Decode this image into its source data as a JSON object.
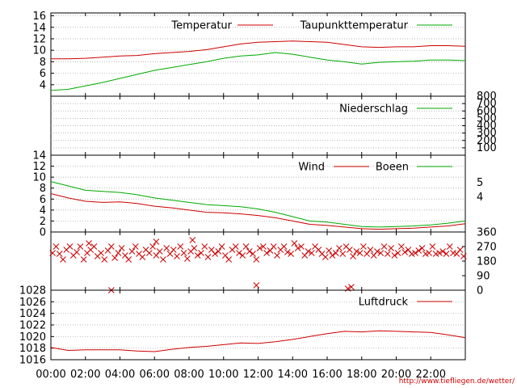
{
  "chart_data": [
    {
      "type": "line",
      "panel": "temperature",
      "x_unit": "hours",
      "ylim": [
        2,
        16.5
      ],
      "y_ticks": [
        "4",
        "6",
        "8",
        "10",
        "12",
        "14",
        "16"
      ],
      "y_tick_values": [
        4,
        6,
        8,
        10,
        12,
        14,
        16
      ],
      "series": [
        {
          "name": "Temperatur",
          "color": "#cc0000",
          "x": [
            0,
            1,
            2,
            3,
            4,
            5,
            6,
            7,
            8,
            9,
            10,
            11,
            12,
            13,
            14,
            15,
            16,
            17,
            18,
            19,
            20,
            21,
            22,
            23,
            24
          ],
          "y": [
            8.5,
            8.5,
            8.6,
            8.8,
            9.0,
            9.1,
            9.4,
            9.6,
            9.8,
            10.1,
            10.6,
            11.1,
            11.4,
            11.5,
            11.6,
            11.5,
            11.4,
            11.0,
            10.6,
            10.5,
            10.6,
            10.6,
            10.8,
            10.8,
            10.7
          ]
        },
        {
          "name": "Taupunkttemperatur",
          "color": "#00aa00",
          "x": [
            0,
            1,
            2,
            3,
            4,
            5,
            6,
            7,
            8,
            9,
            10,
            11,
            12,
            13,
            14,
            15,
            16,
            17,
            18,
            19,
            20,
            21,
            22,
            23,
            24
          ],
          "y": [
            3.0,
            3.2,
            3.8,
            4.4,
            5.1,
            5.8,
            6.5,
            7.0,
            7.5,
            8.0,
            8.6,
            9.0,
            9.2,
            9.6,
            9.3,
            8.8,
            8.3,
            8.0,
            7.6,
            7.9,
            8.0,
            8.1,
            8.3,
            8.3,
            8.2
          ]
        }
      ]
    },
    {
      "type": "line",
      "panel": "precipitation",
      "x_unit": "hours",
      "ylim": [
        0,
        800
      ],
      "y_ticks": [
        "100",
        "200",
        "300",
        "400",
        "500",
        "600",
        "700",
        "800"
      ],
      "y_tick_values": [
        100,
        200,
        300,
        400,
        500,
        600,
        700,
        800
      ],
      "series": [
        {
          "name": "Niederschlag",
          "color": "#00aa00",
          "x": [
            0,
            24
          ],
          "y": [
            0,
            0
          ]
        }
      ]
    },
    {
      "type": "line",
      "panel": "wind",
      "x_unit": "hours",
      "ylim": [
        0,
        14
      ],
      "y_ticks": [
        "0",
        "2",
        "4",
        "6",
        "8",
        "10",
        "12",
        "14"
      ],
      "y_tick_values": [
        0,
        2,
        4,
        6,
        8,
        10,
        12,
        14
      ],
      "y2_ticks": [
        "4",
        "5"
      ],
      "series": [
        {
          "name": "Wind",
          "color": "#cc0000",
          "x": [
            0,
            1,
            2,
            3,
            4,
            5,
            6,
            7,
            8,
            9,
            10,
            11,
            12,
            13,
            14,
            15,
            16,
            17,
            18,
            19,
            20,
            21,
            22,
            23,
            24
          ],
          "y": [
            7.0,
            6.2,
            5.6,
            5.4,
            5.5,
            5.2,
            4.7,
            4.4,
            4.0,
            3.6,
            3.5,
            3.3,
            3.0,
            2.6,
            2.0,
            1.4,
            1.2,
            0.9,
            0.6,
            0.5,
            0.6,
            0.7,
            0.9,
            1.1,
            1.5
          ]
        },
        {
          "name": "Boeen",
          "color": "#00aa00",
          "x": [
            0,
            1,
            2,
            3,
            4,
            5,
            6,
            7,
            8,
            9,
            10,
            11,
            12,
            13,
            14,
            15,
            16,
            17,
            18,
            19,
            20,
            21,
            22,
            23,
            24
          ],
          "y": [
            9.2,
            8.4,
            7.6,
            7.4,
            7.2,
            6.8,
            6.2,
            5.8,
            5.4,
            5.0,
            4.8,
            4.6,
            4.2,
            3.6,
            2.8,
            2.0,
            1.8,
            1.4,
            1.0,
            0.9,
            1.0,
            1.1,
            1.3,
            1.6,
            2.0
          ]
        }
      ]
    },
    {
      "type": "scatter",
      "panel": "wind_direction",
      "x_unit": "hours",
      "ylim": [
        0,
        360
      ],
      "y2_ticks": [
        "0",
        "90",
        "180",
        "270",
        "360"
      ],
      "y2_tick_values": [
        0,
        90,
        180,
        270,
        360
      ],
      "series": [
        {
          "name": "",
          "color": "#cc0000",
          "marker": "x",
          "x": [
            0.1,
            0.3,
            0.5,
            0.7,
            0.9,
            1.1,
            1.3,
            1.5,
            1.7,
            1.9,
            2.1,
            2.3,
            2.5,
            2.7,
            2.9,
            3.1,
            3.3,
            3.5,
            3.7,
            3.9,
            4.1,
            4.3,
            4.5,
            4.7,
            4.9,
            5.1,
            5.3,
            5.5,
            5.7,
            5.9,
            6.1,
            6.3,
            6.5,
            6.7,
            6.9,
            7.1,
            7.3,
            7.5,
            7.7,
            7.9,
            8.1,
            8.3,
            8.5,
            8.7,
            8.9,
            9.1,
            9.3,
            9.5,
            9.7,
            9.9,
            10.1,
            10.3,
            10.5,
            10.7,
            10.9,
            11.1,
            11.3,
            11.5,
            11.7,
            11.9,
            12.1,
            12.3,
            12.5,
            12.7,
            12.9,
            13.1,
            13.3,
            13.5,
            13.7,
            13.9,
            14.1,
            14.3,
            14.5,
            14.7,
            14.9,
            15.1,
            15.3,
            15.5,
            15.7,
            15.9,
            16.1,
            16.3,
            16.5,
            16.7,
            16.9,
            17.1,
            17.3,
            17.5,
            17.7,
            17.9,
            18.1,
            18.3,
            18.5,
            18.7,
            18.9,
            19.1,
            19.3,
            19.5,
            19.7,
            19.9,
            20.1,
            20.3,
            20.5,
            20.7,
            20.9,
            21.1,
            21.3,
            21.5,
            21.7,
            21.9,
            22.1,
            22.3,
            22.5,
            22.7,
            22.9,
            23.1,
            23.3,
            23.5,
            23.7,
            23.9,
            3.5,
            11.9,
            17.2,
            17.4,
            2.2,
            6.1,
            8.2
          ],
          "y": [
            230,
            270,
            225,
            190,
            250,
            270,
            215,
            235,
            270,
            190,
            230,
            250,
            270,
            210,
            230,
            190,
            245,
            270,
            200,
            230,
            260,
            215,
            190,
            240,
            270,
            225,
            205,
            250,
            230,
            270,
            215,
            240,
            190,
            260,
            225,
            250,
            210,
            270,
            230,
            195,
            240,
            260,
            215,
            230,
            270,
            205,
            250,
            225,
            240,
            270,
            215,
            190,
            250,
            270,
            230,
            215,
            270,
            240,
            225,
            190,
            260,
            270,
            230,
            245,
            270,
            215,
            250,
            270,
            235,
            225,
            290,
            260,
            270,
            215,
            240,
            230,
            270,
            250,
            225,
            205,
            245,
            215,
            230,
            260,
            225,
            270,
            250,
            210,
            240,
            230,
            270,
            225,
            250,
            215,
            240,
            230,
            270,
            225,
            260,
            215,
            230,
            270,
            235,
            250,
            225,
            230,
            245,
            260,
            225,
            230,
            270,
            225,
            230,
            240,
            225,
            270,
            230,
            225,
            250,
            210,
            0,
            30,
            10,
            20,
            290,
            300,
            310
          ]
        }
      ]
    },
    {
      "type": "line",
      "panel": "pressure",
      "x_unit": "hours",
      "ylim": [
        1016,
        1028
      ],
      "y_ticks": [
        "1016",
        "1018",
        "1020",
        "1022",
        "1024",
        "1026",
        "1028"
      ],
      "y_tick_values": [
        1016,
        1018,
        1020,
        1022,
        1024,
        1026,
        1028
      ],
      "x_ticks": [
        "00:00",
        "02:00",
        "04:00",
        "06:00",
        "08:00",
        "10:00",
        "12:00",
        "14:00",
        "16:00",
        "18:00",
        "20:00",
        "22:00"
      ],
      "x_tick_values": [
        0,
        2,
        4,
        6,
        8,
        10,
        12,
        14,
        16,
        18,
        20,
        22
      ],
      "xlim": [
        0,
        24
      ],
      "series": [
        {
          "name": "Luftdruck",
          "color": "#cc0000",
          "x": [
            0,
            1,
            2,
            3,
            4,
            5,
            6,
            7,
            8,
            9,
            10,
            11,
            12,
            13,
            14,
            15,
            16,
            17,
            18,
            19,
            20,
            21,
            22,
            23,
            24
          ],
          "y": [
            1018.1,
            1017.6,
            1017.7,
            1017.7,
            1017.7,
            1017.5,
            1017.4,
            1017.8,
            1018.1,
            1018.3,
            1018.6,
            1018.9,
            1018.8,
            1019.1,
            1019.5,
            1020.0,
            1020.5,
            1020.9,
            1020.8,
            1021.0,
            1020.9,
            1020.8,
            1020.7,
            1020.3,
            1019.8
          ]
        }
      ]
    }
  ],
  "source_url": "http://www.tiefliegen.de/wetter/"
}
